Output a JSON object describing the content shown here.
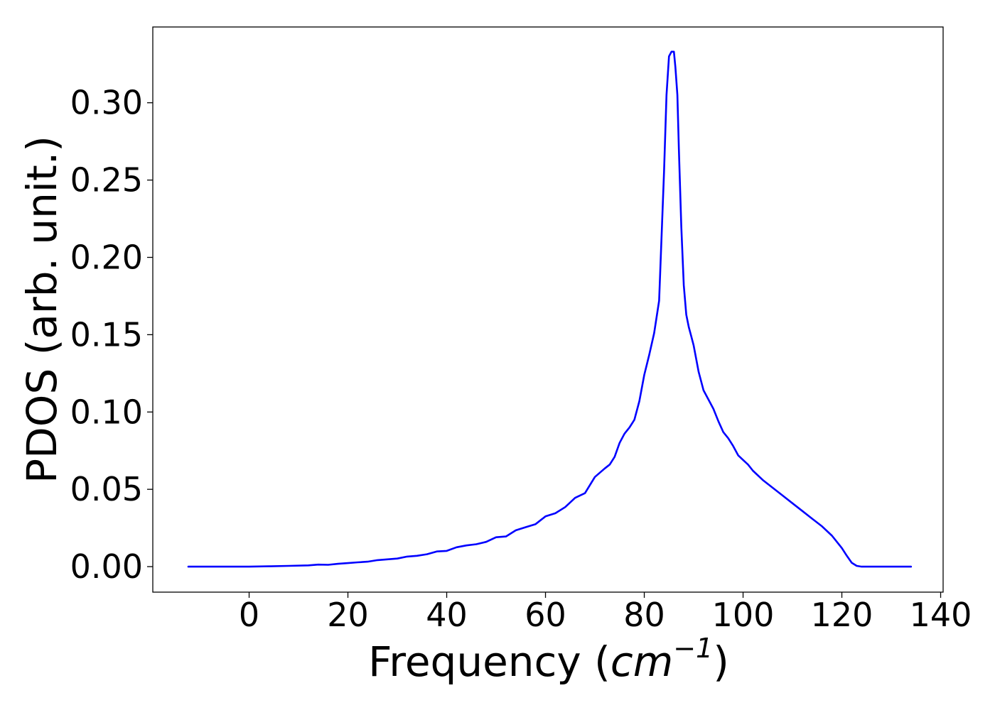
{
  "chart_data": {
    "type": "line",
    "xlabel": "Frequency",
    "xlabel_unit_base": "cm",
    "xlabel_unit_exp": "−1",
    "ylabel": "PDOS (arb. unit.)",
    "xlim": [
      -19.5,
      140.5
    ],
    "ylim": [
      -0.0165,
      0.349
    ],
    "xticks": [
      0,
      20,
      40,
      60,
      80,
      100,
      120,
      140
    ],
    "yticks": [
      0.0,
      0.05,
      0.1,
      0.15,
      0.2,
      0.25,
      0.3
    ],
    "xtick_labels": [
      "0",
      "20",
      "40",
      "60",
      "80",
      "100",
      "120",
      "140"
    ],
    "ytick_labels": [
      "0.00",
      "0.05",
      "0.10",
      "0.15",
      "0.20",
      "0.25",
      "0.30"
    ],
    "grid": false,
    "legend": "none",
    "series": [
      {
        "color": "#0000ff",
        "x": [
          -12.3,
          0,
          4,
          8,
          12,
          14,
          16,
          18,
          20,
          22,
          24,
          26,
          28,
          30,
          32,
          34,
          36,
          38,
          40,
          42,
          44,
          46,
          48,
          50,
          52,
          54,
          56,
          58,
          60,
          62,
          64,
          66,
          68,
          70,
          72,
          73,
          74,
          75,
          76,
          77,
          78,
          79,
          80,
          81,
          82,
          83,
          84,
          84.5,
          85,
          85.5,
          86,
          86.3,
          86.7,
          87,
          87.5,
          88,
          88.5,
          89,
          89.5,
          90,
          91,
          92,
          93,
          94,
          95,
          96,
          97,
          98,
          99,
          100,
          101,
          102,
          104,
          106,
          108,
          110,
          112,
          114,
          116,
          118,
          120,
          121,
          122,
          123,
          124,
          126,
          134
        ],
        "y": [
          0.0,
          0.0,
          0.0002,
          0.0005,
          0.0008,
          0.0013,
          0.0012,
          0.0018,
          0.0023,
          0.0028,
          0.0032,
          0.0042,
          0.0047,
          0.0052,
          0.0065,
          0.007,
          0.008,
          0.0098,
          0.0102,
          0.0125,
          0.0137,
          0.0145,
          0.016,
          0.019,
          0.0195,
          0.0235,
          0.0255,
          0.0275,
          0.0325,
          0.0345,
          0.0385,
          0.0445,
          0.0475,
          0.058,
          0.0635,
          0.066,
          0.071,
          0.08,
          0.086,
          0.09,
          0.095,
          0.107,
          0.124,
          0.137,
          0.151,
          0.172,
          0.255,
          0.305,
          0.33,
          0.333,
          0.333,
          0.323,
          0.305,
          0.27,
          0.22,
          0.182,
          0.163,
          0.155,
          0.149,
          0.143,
          0.126,
          0.114,
          0.108,
          0.102,
          0.094,
          0.087,
          0.083,
          0.078,
          0.072,
          0.069,
          0.066,
          0.062,
          0.056,
          0.051,
          0.046,
          0.041,
          0.036,
          0.031,
          0.026,
          0.02,
          0.012,
          0.007,
          0.0025,
          0.0005,
          0.0,
          0.0,
          0.0
        ]
      }
    ]
  }
}
